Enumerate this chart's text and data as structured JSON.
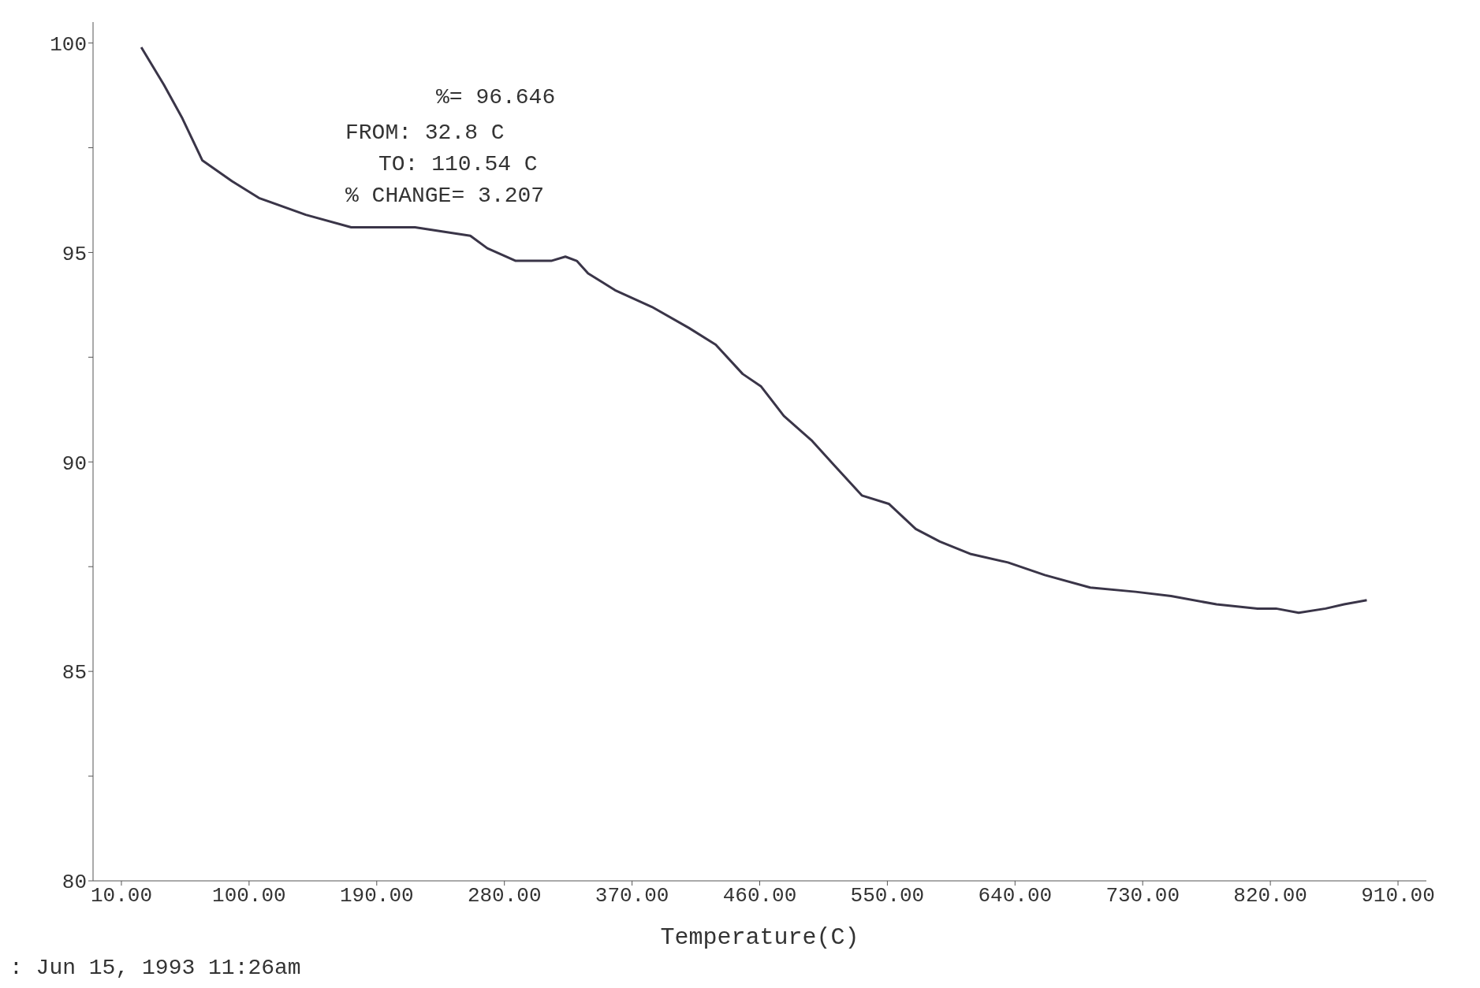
{
  "chart_data": {
    "type": "line",
    "xlabel": "Temperature(C)",
    "x": [
      24,
      40,
      53,
      67,
      88,
      107,
      140,
      172,
      191,
      217,
      236,
      256,
      268,
      288,
      313,
      323,
      331,
      339,
      358,
      384,
      410,
      429,
      448,
      461,
      477,
      497,
      513,
      532,
      551,
      570,
      587,
      609,
      635,
      661,
      693,
      725,
      750,
      782,
      811,
      824,
      840,
      859,
      872,
      888
    ],
    "series": [
      {
        "color": "#3a3548",
        "values": [
          99.9,
          99.0,
          98.2,
          97.2,
          96.7,
          96.3,
          95.9,
          95.6,
          95.6,
          95.6,
          95.5,
          95.4,
          95.1,
          94.8,
          94.8,
          94.9,
          94.8,
          94.5,
          94.1,
          93.7,
          93.2,
          92.8,
          92.1,
          91.8,
          91.1,
          90.5,
          89.9,
          89.2,
          89.0,
          88.4,
          88.1,
          87.8,
          87.6,
          87.3,
          87.0,
          86.9,
          86.8,
          86.6,
          86.5,
          86.5,
          86.4,
          86.5,
          86.6,
          86.7
        ]
      }
    ],
    "xlim": [
      -10,
      930
    ],
    "xticks": [
      {
        "value": 10,
        "label": "10.00"
      },
      {
        "value": 100,
        "label": "100.00"
      },
      {
        "value": 190,
        "label": "190.00"
      },
      {
        "value": 280,
        "label": "280.00"
      },
      {
        "value": 370,
        "label": "370.00"
      },
      {
        "value": 460,
        "label": "460.00"
      },
      {
        "value": 550,
        "label": "550.00"
      },
      {
        "value": 640,
        "label": "640.00"
      },
      {
        "value": 730,
        "label": "730.00"
      },
      {
        "value": 820,
        "label": "820.00"
      },
      {
        "value": 910,
        "label": "910.00"
      }
    ],
    "ylim": [
      80,
      100.5
    ],
    "yticks": [
      80,
      {
        "value": 82.5,
        "label": null
      },
      85,
      {
        "value": 87.5,
        "label": null
      },
      90,
      {
        "value": 92.5,
        "label": null
      },
      95,
      {
        "value": 97.5,
        "label": null
      },
      100
    ],
    "grid": false,
    "marker": "none",
    "line_style": "solid",
    "annotations": [
      "%= 96.646",
      "FROM: 32.8 C",
      "TO: 110.54 C",
      "% CHANGE= 3.207",
      ": Jun 15, 1993 11:26am"
    ]
  }
}
